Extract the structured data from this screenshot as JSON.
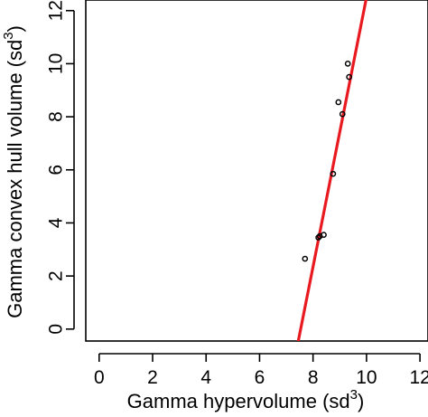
{
  "chart_data": {
    "type": "scatter",
    "xlabel": {
      "text": "Gamma hypervolume (sd",
      "superscript": "3",
      "suffix": ")"
    },
    "ylabel": {
      "text": "Gamma convex hull volume (sd",
      "superscript": "3",
      "suffix": ")"
    },
    "xlim": [
      -0.5,
      12.3
    ],
    "ylim": [
      -0.45,
      12.4
    ],
    "x_ticks": [
      0,
      2,
      4,
      6,
      8,
      10,
      12
    ],
    "y_ticks": [
      0,
      2,
      4,
      6,
      8,
      10,
      12
    ],
    "x_tick_labels": [
      "0",
      "2",
      "4",
      "6",
      "8",
      "10",
      "12"
    ],
    "y_tick_labels": [
      "0",
      "2",
      "4",
      "6",
      "8",
      "10",
      "12"
    ],
    "grid": false,
    "series": [
      {
        "type": "scatter",
        "marker": "open-circle",
        "color": "#000000",
        "points": [
          {
            "x": 7.7,
            "y": 2.65
          },
          {
            "x": 8.2,
            "y": 3.45
          },
          {
            "x": 8.25,
            "y": 3.5
          },
          {
            "x": 8.4,
            "y": 3.55
          },
          {
            "x": 8.75,
            "y": 5.85
          },
          {
            "x": 8.95,
            "y": 8.55
          },
          {
            "x": 9.1,
            "y": 8.1
          },
          {
            "x": 9.3,
            "y": 10.0
          },
          {
            "x": 9.35,
            "y": 9.5
          }
        ]
      },
      {
        "type": "line",
        "color": "#e8191f",
        "points": [
          {
            "x": 7.35,
            "y": -0.95
          },
          {
            "x": 10.0,
            "y": 12.5
          }
        ]
      }
    ]
  }
}
